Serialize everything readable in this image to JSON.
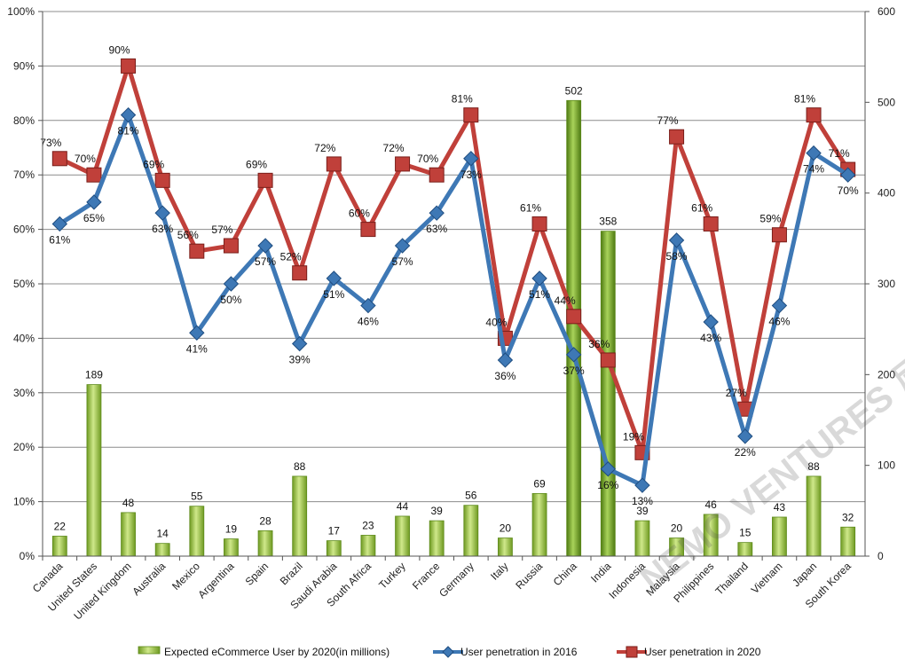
{
  "chart_data": {
    "type": "bar+line",
    "categories": [
      "Canada",
      "United States",
      "United Kingdom",
      "Australia",
      "Mexico",
      "Argentina",
      "Spain",
      "Brazil",
      "Saudi Arabia",
      "South Africa",
      "Turkey",
      "France",
      "Germany",
      "Italy",
      "Russia",
      "China",
      "India",
      "Indonesia",
      "Malaysia",
      "Philippines",
      "Thailand",
      "Vietnam",
      "Japan",
      "South Korea"
    ],
    "series": [
      {
        "name": "Expected eCommerce User by 2020(in millions)",
        "type": "bar",
        "axis": "right",
        "values": [
          22,
          189,
          48,
          14,
          55,
          19,
          28,
          88,
          17,
          23,
          44,
          39,
          56,
          20,
          69,
          502,
          358,
          39,
          20,
          46,
          15,
          43,
          88,
          32
        ],
        "labels": [
          "22",
          "189",
          "48",
          "14",
          "55",
          "19",
          "28",
          "88",
          "17",
          "23",
          "44",
          "39",
          "56",
          "20",
          "69",
          "502",
          "358",
          "39",
          "20",
          "46",
          "15",
          "43",
          "88",
          "32"
        ]
      },
      {
        "name": "User penetration in 2016",
        "type": "line",
        "axis": "left",
        "color": "#3e78b5",
        "values": [
          61,
          65,
          81,
          63,
          41,
          50,
          57,
          39,
          51,
          46,
          57,
          63,
          73,
          36,
          51,
          37,
          16,
          13,
          58,
          43,
          22,
          46,
          74,
          70
        ],
        "labels": [
          "61%",
          "65%",
          "81%",
          "63%",
          "41%",
          "50%",
          "57%",
          "39%",
          "51%",
          "46%",
          "57%",
          "63%",
          "73%",
          "36%",
          "51%",
          "37%",
          "16%",
          "13%",
          "58%",
          "43%",
          "22%",
          "46%",
          "74%",
          "70%"
        ]
      },
      {
        "name": "User penetration in 2020",
        "type": "line",
        "axis": "left",
        "color": "#c0403a",
        "values": [
          73,
          70,
          90,
          69,
          56,
          57,
          69,
          52,
          72,
          60,
          72,
          70,
          81,
          40,
          61,
          44,
          36,
          19,
          77,
          61,
          27,
          59,
          81,
          71
        ],
        "labels": [
          "73%",
          "70%",
          "90%",
          "69%",
          "56%",
          "57%",
          "69%",
          "52%",
          "72%",
          "60%",
          "72%",
          "70%",
          "81%",
          "40%",
          "61%",
          "44%",
          "36%",
          "19%",
          "77%",
          "61%",
          "27%",
          "59%",
          "81%",
          "71%"
        ]
      }
    ],
    "y_left": {
      "min": 0,
      "max": 100,
      "ticks": [
        "0%",
        "10%",
        "20%",
        "30%",
        "40%",
        "50%",
        "60%",
        "70%",
        "80%",
        "90%",
        "100%"
      ]
    },
    "y_right": {
      "min": 0,
      "max": 600,
      "ticks": [
        "0",
        "100",
        "200",
        "300",
        "400",
        "500",
        "600"
      ]
    },
    "grid": true,
    "legend_position": "bottom",
    "watermark": "NEMO VENTURES 尼莫创投"
  }
}
